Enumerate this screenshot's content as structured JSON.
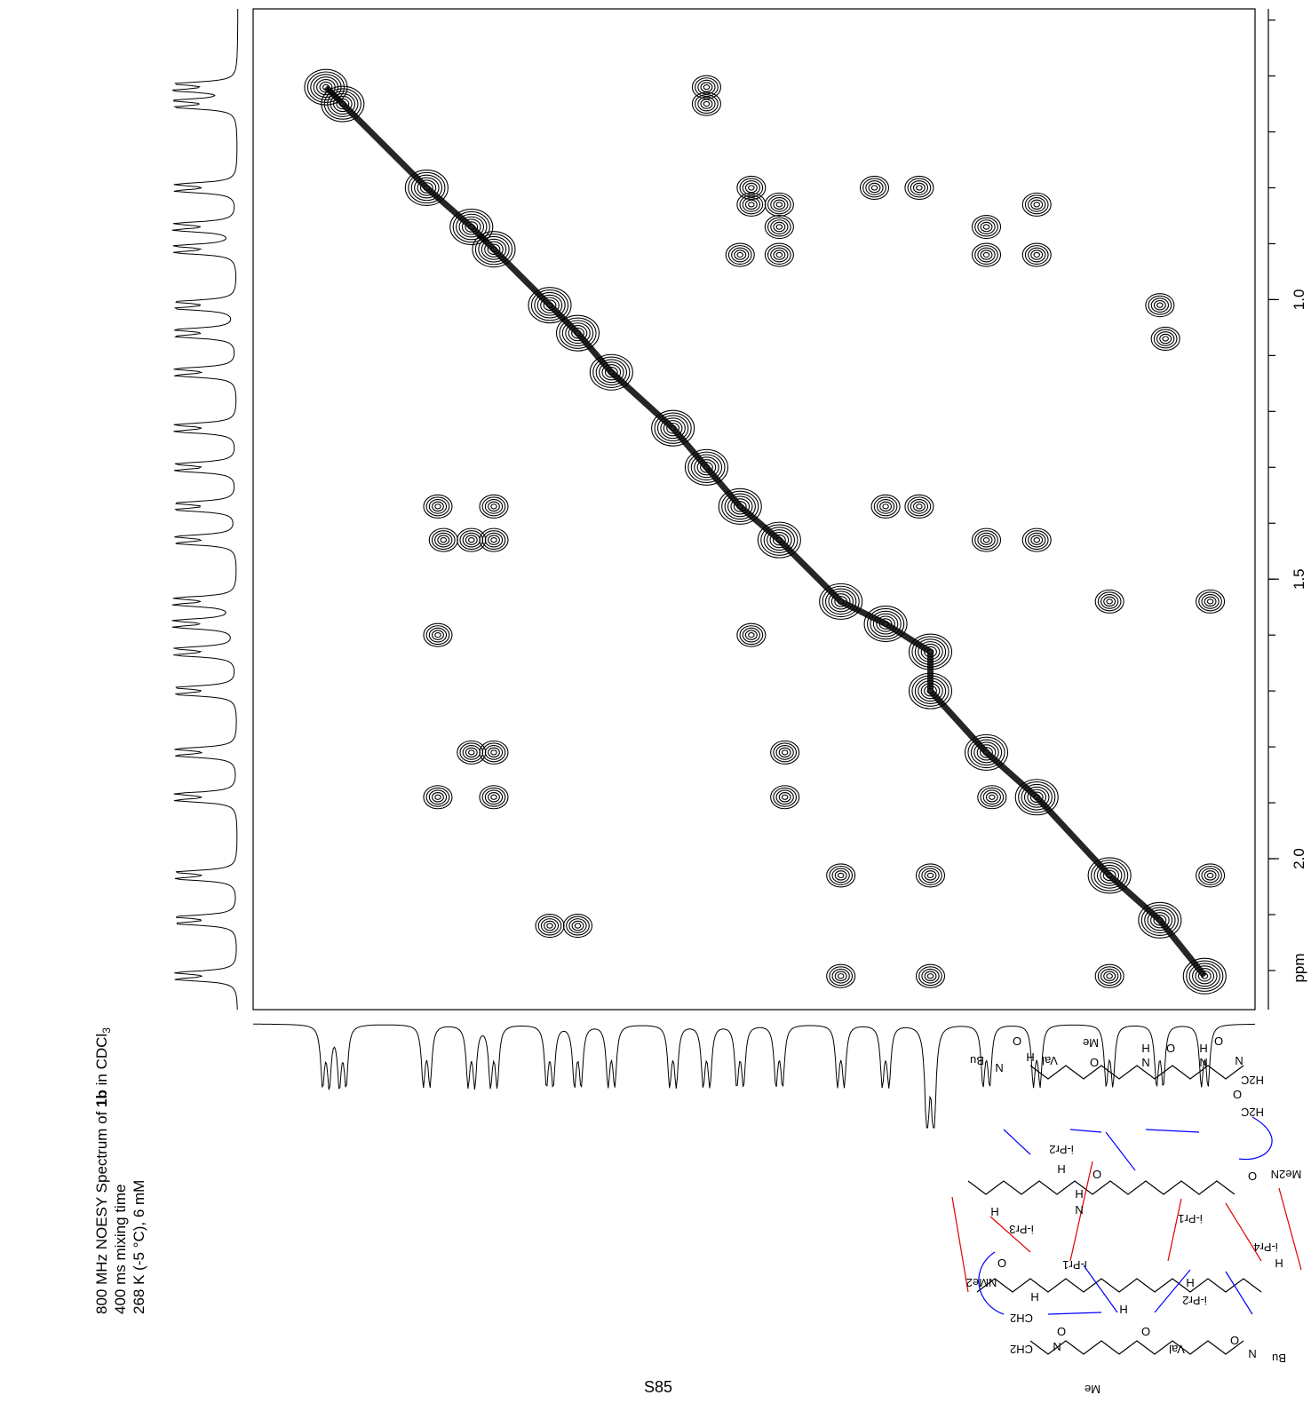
{
  "chart_data": {
    "type": "contour",
    "xlim": [
      0.49,
      2.28
    ],
    "ylim": [
      0.48,
      2.27
    ],
    "yticks": [
      {
        "value": 1.0,
        "label": "1.0"
      },
      {
        "value": 1.5,
        "label": "1.5"
      },
      {
        "value": 2.0,
        "label": "2.0"
      }
    ],
    "yticks_minor": [
      0.5,
      0.6,
      0.7,
      0.8,
      0.9,
      1.0,
      1.1,
      1.2,
      1.3,
      1.4,
      1.5,
      1.6,
      1.7,
      1.8,
      1.9,
      2.0,
      2.1,
      2.2
    ],
    "y_axis_label": "ppm",
    "color": "#000000",
    "diagonal_peaks": {
      "x": [
        0.62,
        0.65,
        0.8,
        0.88,
        0.92,
        1.02,
        1.07,
        1.13,
        1.24,
        1.3,
        1.36,
        1.43,
        1.54,
        1.62,
        1.7,
        1.7,
        1.8,
        1.89,
        2.02,
        2.11,
        2.19
      ],
      "y": [
        0.62,
        0.65,
        0.8,
        0.87,
        0.91,
        1.01,
        1.06,
        1.13,
        1.23,
        1.3,
        1.37,
        1.43,
        1.54,
        1.58,
        1.63,
        1.7,
        1.81,
        1.89,
        2.03,
        2.11,
        2.21
      ]
    },
    "cross_peaks": {
      "x": [
        1.3,
        1.3,
        1.38,
        1.38,
        1.43,
        1.6,
        1.68,
        1.89,
        1.8,
        1.8,
        1.89,
        1.43,
        1.36,
        1.43,
        2.11,
        2.12,
        0.82,
        0.92,
        1.62,
        1.68,
        0.83,
        0.88,
        0.92,
        1.8,
        1.89,
        2.02,
        2.2,
        0.82,
        1.38,
        0.88,
        0.92,
        1.44,
        0.82,
        0.92,
        1.44,
        1.81,
        1.54,
        1.7,
        2.2,
        1.02,
        1.07,
        1.54,
        1.7,
        2.02
      ],
      "y": [
        0.62,
        0.65,
        0.8,
        0.83,
        0.83,
        0.8,
        0.8,
        0.83,
        0.87,
        0.92,
        0.92,
        0.87,
        0.92,
        0.92,
        1.01,
        1.07,
        1.37,
        1.37,
        1.37,
        1.37,
        1.43,
        1.43,
        1.43,
        1.43,
        1.43,
        1.54,
        1.54,
        1.6,
        1.6,
        1.81,
        1.81,
        1.81,
        1.89,
        1.89,
        1.89,
        1.89,
        2.03,
        2.03,
        2.03,
        2.12,
        2.12,
        2.21,
        2.21,
        2.21
      ]
    }
  },
  "caption": {
    "line1": {
      "pre": "800 MHz NOESY Spectrum of ",
      "bold": "1b",
      "mid": " in CDCl",
      "sub": "3"
    },
    "line2": "400 ms mixing time",
    "line3": "268 K (-5 °C), 6 mM"
  },
  "page_number": "S85",
  "structure": {
    "labels": [
      "Me",
      "O",
      "O",
      "H",
      "N",
      "Bu",
      "Val",
      "H",
      "N",
      "O",
      "N",
      "H",
      "N",
      "O",
      "H2C",
      "O",
      "H2C",
      "Me2N",
      "O",
      "i-Pr2",
      "H",
      "H",
      "N",
      "O",
      "i-Pr1",
      "i-Pr3",
      "H",
      "i-Pr1",
      "O",
      "NMe2",
      "H",
      "CH2",
      "CH2",
      "O",
      "N",
      "H",
      "O",
      "i-Pr2",
      "H",
      "Val",
      "O",
      "N",
      "Bu",
      "Me",
      "i-Pr4",
      "H"
    ]
  }
}
